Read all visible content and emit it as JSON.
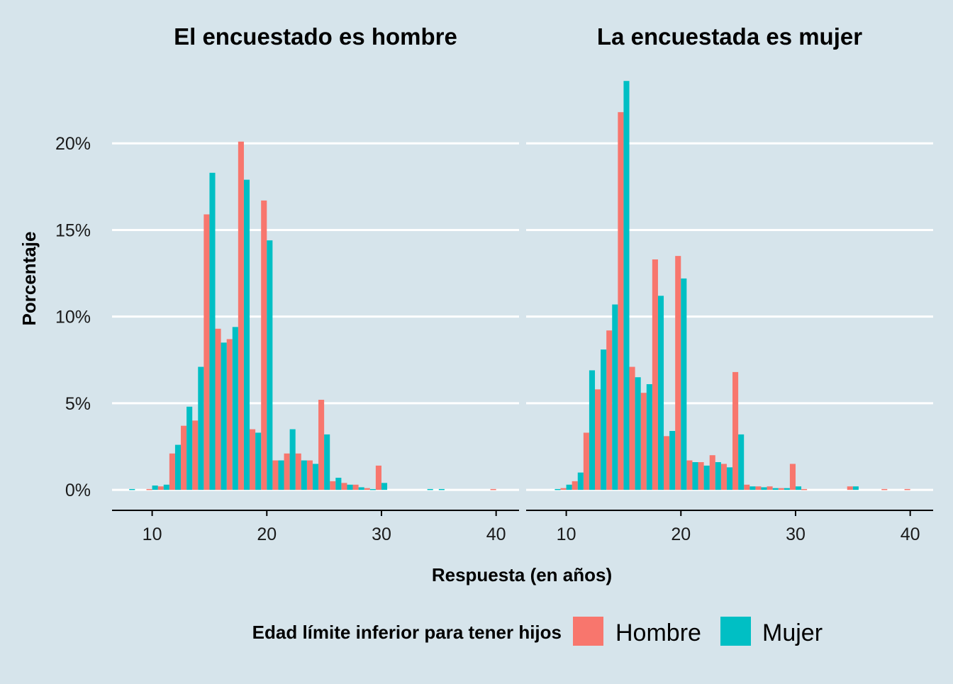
{
  "chart_data": {
    "type": "bar",
    "title": "",
    "xlabel": "Respuesta (en años)",
    "ylabel": "Porcentaje",
    "y_ticks": [
      "0%",
      "5%",
      "10%",
      "15%",
      "20%"
    ],
    "y_tick_values": [
      0,
      5,
      10,
      15,
      20
    ],
    "x_ticks": [
      "10",
      "20",
      "30",
      "40"
    ],
    "x_tick_values": [
      10,
      20,
      30,
      40
    ],
    "xlim": [
      6.5,
      42
    ],
    "ylim": [
      -1.1,
      25
    ],
    "grid": "horizontal",
    "legend": {
      "title": "Edad límite inferior para tener hijos",
      "position": "bottom",
      "entries": [
        {
          "name": "Hombre",
          "color": "#F8766D"
        },
        {
          "name": "Mujer",
          "color": "#00BFC4"
        }
      ]
    },
    "panels": [
      {
        "title": "El encuestado es hombre",
        "x": [
          8,
          9,
          10,
          11,
          12,
          13,
          14,
          15,
          16,
          17,
          18,
          19,
          20,
          21,
          22,
          23,
          24,
          25,
          26,
          27,
          28,
          29,
          30,
          31,
          32,
          33,
          34,
          35,
          36,
          37,
          38,
          39,
          40
        ],
        "series": [
          {
            "name": "Hombre",
            "values": [
              0,
              0,
              0.05,
              0.2,
              2.1,
              3.7,
              4.0,
              15.9,
              9.3,
              8.7,
              20.1,
              3.5,
              16.7,
              1.7,
              2.1,
              2.1,
              1.7,
              5.2,
              0.5,
              0.4,
              0.3,
              0.1,
              1.4,
              0,
              0,
              0,
              0,
              0,
              0,
              0,
              0,
              0,
              0.05
            ]
          },
          {
            "name": "Mujer",
            "values": [
              0.05,
              0,
              0.25,
              0.3,
              2.6,
              4.8,
              7.1,
              18.3,
              8.5,
              9.4,
              17.9,
              3.3,
              14.4,
              1.7,
              3.5,
              1.7,
              1.5,
              3.2,
              0.7,
              0.3,
              0.15,
              0.05,
              0.4,
              0,
              0,
              0,
              0.05,
              0.05,
              0,
              0,
              0,
              0,
              0
            ]
          }
        ]
      },
      {
        "title": "La encuestada es mujer",
        "x": [
          8,
          9,
          10,
          11,
          12,
          13,
          14,
          15,
          16,
          17,
          18,
          19,
          20,
          21,
          22,
          23,
          24,
          25,
          26,
          27,
          28,
          29,
          30,
          31,
          32,
          33,
          34,
          35,
          36,
          37,
          38,
          39,
          40
        ],
        "series": [
          {
            "name": "Hombre",
            "values": [
              0,
              0,
              0.1,
              0.5,
              3.3,
              5.8,
              9.2,
              21.8,
              7.1,
              5.6,
              13.3,
              3.1,
              13.5,
              1.7,
              1.6,
              2.0,
              1.5,
              6.8,
              0.3,
              0.2,
              0.2,
              0.1,
              1.5,
              0.05,
              0,
              0,
              0,
              0.2,
              0,
              0,
              0.05,
              0,
              0.05
            ]
          },
          {
            "name": "Mujer",
            "values": [
              0,
              0.05,
              0.3,
              1.0,
              6.9,
              8.1,
              10.7,
              23.6,
              6.5,
              6.1,
              11.2,
              3.4,
              12.2,
              1.6,
              1.4,
              1.6,
              1.3,
              3.2,
              0.2,
              0.15,
              0.1,
              0.1,
              0.2,
              0,
              0,
              0,
              0,
              0.2,
              0,
              0,
              0,
              0,
              0
            ]
          }
        ]
      }
    ]
  }
}
